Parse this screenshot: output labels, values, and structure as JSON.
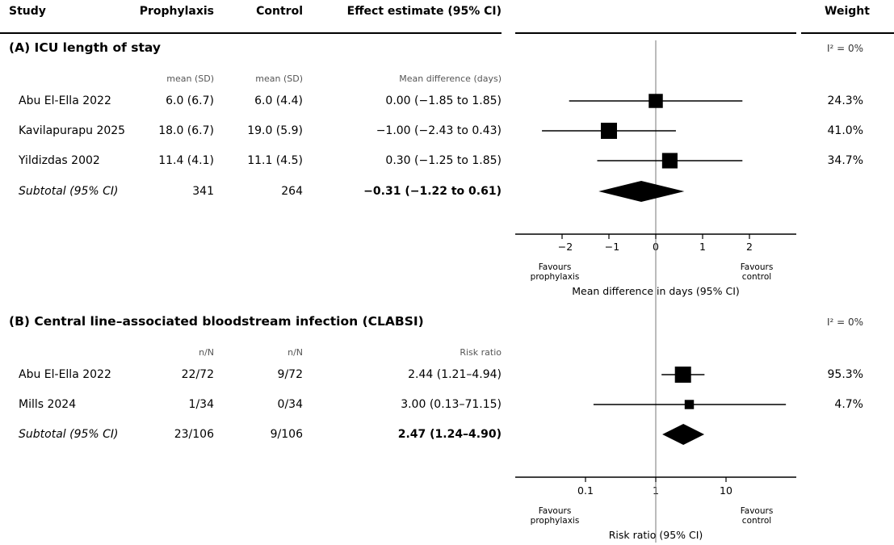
{
  "header": {
    "study": "Study",
    "prophylaxis": "Prophylaxis",
    "control": "Control",
    "effect": "Effect estimate (95% CI)",
    "weight": "Weight"
  },
  "chart_data": [
    {
      "type": "forest",
      "title": "(A) ICU length of stay",
      "heterogeneity": "I² = 0%",
      "col_sub": {
        "prophylaxis": "mean (SD)",
        "control": "mean (SD)",
        "effect": "Mean difference (days)"
      },
      "scale": "linear",
      "xlim": [
        -3,
        3
      ],
      "ticks": [
        -2,
        -1,
        0,
        1,
        2
      ],
      "tick_labels": [
        "−2",
        "−1",
        "0",
        "1",
        "2"
      ],
      "xlabel": "Mean difference in days (95% CI)",
      "favours_left": "Favours\nprophylaxis",
      "favours_right": "Favours\ncontrol",
      "studies": [
        {
          "name": "Abu El-Ella 2022",
          "prophylaxis": "6.0 (6.7)",
          "control": "6.0 (4.4)",
          "effect_text": "0.00 (−1.85 to 1.85)",
          "est": 0.0,
          "lo": -1.85,
          "hi": 1.85,
          "weight": "24.3%",
          "weight_value": 24.3
        },
        {
          "name": "Kavilapurapu 2025",
          "prophylaxis": "18.0 (6.7)",
          "control": "19.0 (5.9)",
          "effect_text": "−1.00 (−2.43 to 0.43)",
          "est": -1.0,
          "lo": -2.43,
          "hi": 0.43,
          "weight": "41.0%",
          "weight_value": 41.0
        },
        {
          "name": "Yildizdas 2002",
          "prophylaxis": "11.4 (4.1)",
          "control": "11.1 (4.5)",
          "effect_text": "0.30 (−1.25 to 1.85)",
          "est": 0.3,
          "lo": -1.25,
          "hi": 1.85,
          "weight": "34.7%",
          "weight_value": 34.7
        }
      ],
      "subtotal": {
        "name": "Subtotal (95% CI)",
        "prophylaxis": "341",
        "control": "264",
        "effect_text": "−0.31 (−1.22 to 0.61)",
        "est": -0.31,
        "lo": -1.22,
        "hi": 0.61
      }
    },
    {
      "type": "forest",
      "title": "(B) Central line–associated bloodstream infection (CLABSI)",
      "heterogeneity": "I² = 0%",
      "col_sub": {
        "prophylaxis": "n/N",
        "control": "n/N",
        "effect": "Risk ratio"
      },
      "scale": "log",
      "xlim": [
        0.02,
        80
      ],
      "ticks": [
        0.1,
        1,
        10
      ],
      "tick_labels": [
        "0.1",
        "1",
        "10"
      ],
      "xlabel": "Risk ratio (95% CI)",
      "favours_left": "Favours\nprophylaxis",
      "favours_right": "Favours\ncontrol",
      "studies": [
        {
          "name": "Abu El-Ella 2022",
          "prophylaxis": "22/72",
          "control": "9/72",
          "effect_text": "2.44 (1.21–4.94)",
          "est": 2.44,
          "lo": 1.21,
          "hi": 4.94,
          "weight": "95.3%",
          "weight_value": 95.3
        },
        {
          "name": "Mills 2024",
          "prophylaxis": "1/34",
          "control": "0/34",
          "effect_text": "3.00 (0.13–71.15)",
          "est": 3.0,
          "lo": 0.13,
          "hi": 71.15,
          "weight": "4.7%",
          "weight_value": 4.7
        }
      ],
      "subtotal": {
        "name": "Subtotal (95% CI)",
        "prophylaxis": "23/106",
        "control": "9/106",
        "effect_text": "2.47 (1.24–4.90)",
        "est": 2.47,
        "lo": 1.24,
        "hi": 4.9
      }
    }
  ]
}
